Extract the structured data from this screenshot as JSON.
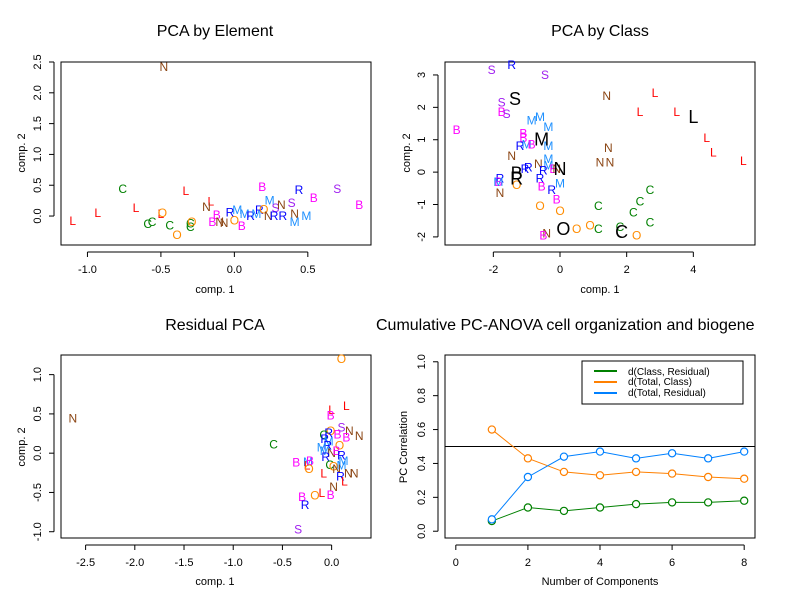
{
  "colors": {
    "L": "#ff0000",
    "C": "#008000",
    "O": "#ff8c00",
    "N": "#8b4513",
    "B": "#ff00ff",
    "S": "#a020f0",
    "R": "#0000ff",
    "M": "#1e90ff",
    "centroid": "#000000"
  },
  "chart_data": [
    {
      "id": "pca-element",
      "type": "scatter",
      "title": "PCA by Element",
      "xlabel": "comp. 1",
      "ylabel": "comp. 2",
      "xlim": [
        -1.18,
        0.93
      ],
      "ylim": [
        -0.47,
        2.5
      ],
      "xticks": [
        "-1.0",
        "-0.5",
        "0.0",
        "0.5"
      ],
      "xtick_values": [
        -1.0,
        -0.5,
        0.0,
        0.5
      ],
      "yticks": [
        "0.0",
        "0.5",
        "1.0",
        "1.5",
        "2.0",
        "2.5"
      ],
      "ytick_values": [
        0.0,
        0.5,
        1.0,
        1.5,
        2.0,
        2.5
      ],
      "points": [
        {
          "label": "N",
          "x": -0.48,
          "y": 2.42
        },
        {
          "label": "C",
          "x": -0.76,
          "y": 0.44
        },
        {
          "label": "L",
          "x": -1.1,
          "y": -0.08
        },
        {
          "label": "L",
          "x": -0.93,
          "y": 0.05
        },
        {
          "label": "L",
          "x": -0.67,
          "y": 0.13
        },
        {
          "label": "L",
          "x": -0.33,
          "y": 0.41
        },
        {
          "label": "L",
          "x": -0.5,
          "y": 0.03
        },
        {
          "label": "O",
          "x": -0.49,
          "y": 0.05
        },
        {
          "label": "C",
          "x": -0.59,
          "y": -0.13
        },
        {
          "label": "C",
          "x": -0.56,
          "y": -0.1
        },
        {
          "label": "C",
          "x": -0.44,
          "y": -0.15
        },
        {
          "label": "C",
          "x": -0.3,
          "y": -0.18
        },
        {
          "label": "C",
          "x": -0.3,
          "y": -0.12
        },
        {
          "label": "O",
          "x": -0.29,
          "y": -0.1
        },
        {
          "label": "O",
          "x": -0.39,
          "y": -0.31
        },
        {
          "label": "L",
          "x": -0.16,
          "y": 0.24
        },
        {
          "label": "N",
          "x": -0.19,
          "y": 0.15
        },
        {
          "label": "B",
          "x": -0.15,
          "y": -0.1
        },
        {
          "label": "B",
          "x": -0.12,
          "y": 0.02
        },
        {
          "label": "N",
          "x": -0.1,
          "y": -0.1
        },
        {
          "label": "N",
          "x": -0.07,
          "y": -0.11
        },
        {
          "label": "O",
          "x": 0.0,
          "y": -0.07
        },
        {
          "label": "B",
          "x": 0.05,
          "y": -0.16
        },
        {
          "label": "R",
          "x": -0.03,
          "y": 0.06
        },
        {
          "label": "M",
          "x": 0.02,
          "y": 0.1
        },
        {
          "label": "M",
          "x": 0.07,
          "y": 0.03
        },
        {
          "label": "R",
          "x": 0.11,
          "y": 0.0
        },
        {
          "label": "M",
          "x": 0.15,
          "y": 0.03
        },
        {
          "label": "R",
          "x": 0.17,
          "y": 0.1
        },
        {
          "label": "B",
          "x": 0.19,
          "y": 0.47
        },
        {
          "label": "O",
          "x": 0.2,
          "y": 0.11
        },
        {
          "label": "N",
          "x": 0.23,
          "y": 0.0
        },
        {
          "label": "M",
          "x": 0.24,
          "y": 0.25
        },
        {
          "label": "S",
          "x": 0.28,
          "y": 0.13
        },
        {
          "label": "N",
          "x": 0.32,
          "y": 0.18
        },
        {
          "label": "R",
          "x": 0.27,
          "y": 0.0
        },
        {
          "label": "R",
          "x": 0.33,
          "y": 0.0
        },
        {
          "label": "S",
          "x": 0.39,
          "y": 0.21
        },
        {
          "label": "N",
          "x": 0.41,
          "y": 0.03
        },
        {
          "label": "M",
          "x": 0.41,
          "y": -0.1
        },
        {
          "label": "R",
          "x": 0.44,
          "y": 0.42
        },
        {
          "label": "M",
          "x": 0.49,
          "y": 0.0
        },
        {
          "label": "B",
          "x": 0.54,
          "y": 0.29
        },
        {
          "label": "S",
          "x": 0.7,
          "y": 0.44
        },
        {
          "label": "B",
          "x": 0.85,
          "y": 0.18
        }
      ]
    },
    {
      "id": "pca-class",
      "type": "scatter",
      "title": "PCA by Class",
      "xlabel": "comp. 1",
      "ylabel": "comp. 2",
      "xlim": [
        -3.45,
        5.85
      ],
      "ylim": [
        -2.25,
        3.4
      ],
      "xticks": [
        "-2",
        "0",
        "2",
        "4"
      ],
      "xtick_values": [
        -2,
        0,
        2,
        4
      ],
      "yticks": [
        "-2",
        "-1",
        "0",
        "1",
        "2",
        "3"
      ],
      "ytick_values": [
        -2,
        -1,
        0,
        1,
        2,
        3
      ],
      "points": [
        {
          "label": "S",
          "x": -2.05,
          "y": 3.15
        },
        {
          "label": "R",
          "x": -1.45,
          "y": 3.3
        },
        {
          "label": "S",
          "x": -0.45,
          "y": 3.0
        },
        {
          "label": "S",
          "x": -1.75,
          "y": 2.15
        },
        {
          "label": "B",
          "x": -1.75,
          "y": 1.85
        },
        {
          "label": "S",
          "x": -1.6,
          "y": 1.8
        },
        {
          "label": "B",
          "x": -3.1,
          "y": 1.3
        },
        {
          "label": "M",
          "x": -0.85,
          "y": 1.6
        },
        {
          "label": "M",
          "x": -0.6,
          "y": 1.7
        },
        {
          "label": "M",
          "x": -0.35,
          "y": 1.4
        },
        {
          "label": "B",
          "x": -1.1,
          "y": 1.2
        },
        {
          "label": "B",
          "x": -1.1,
          "y": 1.05
        },
        {
          "label": "R",
          "x": -1.2,
          "y": 0.8
        },
        {
          "label": "M",
          "x": -1.0,
          "y": 0.85
        },
        {
          "label": "B",
          "x": -0.85,
          "y": 0.85
        },
        {
          "label": "M",
          "x": -0.35,
          "y": 0.8
        },
        {
          "label": "N",
          "x": -1.45,
          "y": 0.5
        },
        {
          "label": "N",
          "x": -0.65,
          "y": 0.25
        },
        {
          "label": "M",
          "x": -0.35,
          "y": 0.4
        },
        {
          "label": "M",
          "x": -0.35,
          "y": 0.2
        },
        {
          "label": "R",
          "x": -0.95,
          "y": 0.15
        },
        {
          "label": "R",
          "x": -1.05,
          "y": 0.1
        },
        {
          "label": "B",
          "x": -0.2,
          "y": 0.1
        },
        {
          "label": "N",
          "x": -0.1,
          "y": 0.1
        },
        {
          "label": "R",
          "x": -0.5,
          "y": 0.05
        },
        {
          "label": "N",
          "x": 1.2,
          "y": 0.3
        },
        {
          "label": "N",
          "x": 1.5,
          "y": 0.3
        },
        {
          "label": "N",
          "x": 1.45,
          "y": 0.75
        },
        {
          "label": "N",
          "x": 1.4,
          "y": 2.35
        },
        {
          "label": "R",
          "x": -1.8,
          "y": -0.2
        },
        {
          "label": "B",
          "x": -1.85,
          "y": -0.3
        },
        {
          "label": "M",
          "x": -1.85,
          "y": -0.3
        },
        {
          "label": "O",
          "x": -1.3,
          "y": -0.4
        },
        {
          "label": "R",
          "x": -0.6,
          "y": -0.2
        },
        {
          "label": "B",
          "x": -0.55,
          "y": -0.45
        },
        {
          "label": "M",
          "x": 0.0,
          "y": -0.35
        },
        {
          "label": "R",
          "x": -0.25,
          "y": -0.55
        },
        {
          "label": "N",
          "x": -1.8,
          "y": -0.65
        },
        {
          "label": "B",
          "x": -0.1,
          "y": -0.85
        },
        {
          "label": "O",
          "x": -0.6,
          "y": -1.05
        },
        {
          "label": "O",
          "x": 0.0,
          "y": -1.2
        },
        {
          "label": "C",
          "x": 1.15,
          "y": -1.05
        },
        {
          "label": "C",
          "x": 2.2,
          "y": -1.25
        },
        {
          "label": "C",
          "x": 2.4,
          "y": -0.9
        },
        {
          "label": "C",
          "x": 2.7,
          "y": -0.55
        },
        {
          "label": "C",
          "x": 2.7,
          "y": -1.55
        },
        {
          "label": "C",
          "x": 1.15,
          "y": -1.75
        },
        {
          "label": "C",
          "x": 1.8,
          "y": -1.7
        },
        {
          "label": "O",
          "x": 0.9,
          "y": -1.65
        },
        {
          "label": "O",
          "x": 0.5,
          "y": -1.75
        },
        {
          "label": "O",
          "x": 2.3,
          "y": -1.95
        },
        {
          "label": "N",
          "x": -0.4,
          "y": -1.9
        },
        {
          "label": "B",
          "x": -0.5,
          "y": -1.95
        },
        {
          "label": "L",
          "x": 2.85,
          "y": 2.45
        },
        {
          "label": "L",
          "x": 2.4,
          "y": 1.85
        },
        {
          "label": "L",
          "x": 3.5,
          "y": 1.85
        },
        {
          "label": "L",
          "x": 4.4,
          "y": 1.05
        },
        {
          "label": "L",
          "x": 4.6,
          "y": 0.6
        },
        {
          "label": "L",
          "x": 5.5,
          "y": 0.35
        }
      ],
      "centroids": [
        {
          "label": "S",
          "x": -1.35,
          "y": 2.25
        },
        {
          "label": "M",
          "x": -0.55,
          "y": 1.0
        },
        {
          "label": "N",
          "x": 0.0,
          "y": 0.1
        },
        {
          "label": "B",
          "x": -1.3,
          "y": -0.05
        },
        {
          "label": "R",
          "x": -1.3,
          "y": -0.2
        },
        {
          "label": "L",
          "x": 4.0,
          "y": 1.7
        },
        {
          "label": "O",
          "x": 0.1,
          "y": -1.75
        },
        {
          "label": "C",
          "x": 1.85,
          "y": -1.85
        }
      ]
    },
    {
      "id": "residual-pca",
      "type": "scatter",
      "title": "Residual PCA",
      "xlabel": "comp. 1",
      "ylabel": "comp. 2",
      "xlim": [
        -2.75,
        0.4
      ],
      "ylim": [
        -1.08,
        1.25
      ],
      "xticks": [
        "-2.5",
        "-2.0",
        "-1.5",
        "-1.0",
        "-0.5",
        "0.0"
      ],
      "xtick_values": [
        -2.5,
        -2.0,
        -1.5,
        -1.0,
        -0.5,
        0.0
      ],
      "yticks": [
        "-1.0",
        "-0.5",
        "0.0",
        "0.5",
        "1.0"
      ],
      "ytick_values": [
        -1.0,
        -0.5,
        0.0,
        0.5,
        1.0
      ],
      "points": [
        {
          "label": "N",
          "x": -2.63,
          "y": 0.44
        },
        {
          "label": "C",
          "x": -0.59,
          "y": 0.11
        },
        {
          "label": "O",
          "x": 0.1,
          "y": 1.2
        },
        {
          "label": "L",
          "x": 0.15,
          "y": 0.6
        },
        {
          "label": "L",
          "x": 0.0,
          "y": 0.55
        },
        {
          "label": "B",
          "x": -0.01,
          "y": 0.48
        },
        {
          "label": "S",
          "x": 0.1,
          "y": 0.33
        },
        {
          "label": "N",
          "x": 0.18,
          "y": 0.28
        },
        {
          "label": "N",
          "x": 0.28,
          "y": 0.22
        },
        {
          "label": "B",
          "x": 0.06,
          "y": 0.24
        },
        {
          "label": "B",
          "x": 0.15,
          "y": 0.2
        },
        {
          "label": "O",
          "x": -0.01,
          "y": 0.28
        },
        {
          "label": "R",
          "x": -0.03,
          "y": 0.26
        },
        {
          "label": "C",
          "x": -0.08,
          "y": 0.23
        },
        {
          "label": "R",
          "x": -0.07,
          "y": 0.18
        },
        {
          "label": "M",
          "x": -0.03,
          "y": 0.15
        },
        {
          "label": "O",
          "x": 0.08,
          "y": 0.1
        },
        {
          "label": "R",
          "x": -0.04,
          "y": 0.1
        },
        {
          "label": "M",
          "x": -0.1,
          "y": 0.07
        },
        {
          "label": "M",
          "x": -0.07,
          "y": 0.03
        },
        {
          "label": "N",
          "x": 0.0,
          "y": 0.0
        },
        {
          "label": "B",
          "x": 0.05,
          "y": 0.03
        },
        {
          "label": "R",
          "x": -0.06,
          "y": -0.05
        },
        {
          "label": "R",
          "x": 0.1,
          "y": -0.03
        },
        {
          "label": "M",
          "x": 0.12,
          "y": -0.1
        },
        {
          "label": "C",
          "x": -0.02,
          "y": -0.15
        },
        {
          "label": "O",
          "x": 0.02,
          "y": -0.17
        },
        {
          "label": "M",
          "x": 0.1,
          "y": -0.16
        },
        {
          "label": "N",
          "x": 0.05,
          "y": -0.2
        },
        {
          "label": "L",
          "x": -0.08,
          "y": -0.26
        },
        {
          "label": "N",
          "x": 0.17,
          "y": -0.26
        },
        {
          "label": "N",
          "x": 0.23,
          "y": -0.26
        },
        {
          "label": "R",
          "x": 0.09,
          "y": -0.3
        },
        {
          "label": "L",
          "x": 0.13,
          "y": -0.36
        },
        {
          "label": "N",
          "x": 0.02,
          "y": -0.43
        },
        {
          "label": "B",
          "x": -0.36,
          "y": -0.12
        },
        {
          "label": "M",
          "x": -0.24,
          "y": -0.11
        },
        {
          "label": "B",
          "x": -0.22,
          "y": -0.1
        },
        {
          "label": "L",
          "x": -0.25,
          "y": -0.16
        },
        {
          "label": "O",
          "x": -0.23,
          "y": -0.2
        },
        {
          "label": "L",
          "x": -0.1,
          "y": -0.51
        },
        {
          "label": "B",
          "x": -0.01,
          "y": -0.53
        },
        {
          "label": "O",
          "x": -0.17,
          "y": -0.54
        },
        {
          "label": "B",
          "x": -0.3,
          "y": -0.56
        },
        {
          "label": "R",
          "x": -0.27,
          "y": -0.66
        },
        {
          "label": "S",
          "x": -0.34,
          "y": -0.97
        }
      ]
    },
    {
      "id": "cumulative-pc-anova",
      "type": "line",
      "title": "Cumulative PC-ANOVA cell organization and biogene",
      "xlabel": "Number of Components",
      "ylabel": "PC Correlation",
      "xlim": [
        -0.3,
        8.3
      ],
      "ylim": [
        -0.04,
        1.04
      ],
      "xticks": [
        "0",
        "2",
        "4",
        "6",
        "8"
      ],
      "xtick_values": [
        0,
        2,
        4,
        6,
        8
      ],
      "yticks": [
        "0.0",
        "0.2",
        "0.4",
        "0.6",
        "0.8",
        "1.0"
      ],
      "ytick_values": [
        0.0,
        0.2,
        0.4,
        0.6,
        0.8,
        1.0
      ],
      "hline": 0.5,
      "x": [
        1,
        2,
        3,
        4,
        5,
        6,
        7,
        8
      ],
      "series": [
        {
          "name": "d(Class, Residual)",
          "color": "#008000",
          "values": [
            0.06,
            0.14,
            0.12,
            0.14,
            0.16,
            0.17,
            0.17,
            0.18
          ]
        },
        {
          "name": "d(Total, Class)",
          "color": "#ff8000",
          "values": [
            0.6,
            0.43,
            0.35,
            0.33,
            0.35,
            0.34,
            0.32,
            0.31
          ]
        },
        {
          "name": "d(Total, Residual)",
          "color": "#0080ff",
          "values": [
            0.07,
            0.32,
            0.44,
            0.47,
            0.43,
            0.46,
            0.43,
            0.47
          ]
        }
      ],
      "legend": "top-right"
    }
  ]
}
